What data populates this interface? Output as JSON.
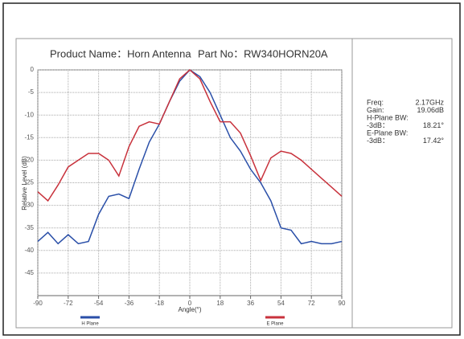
{
  "chart_data": {
    "type": "line",
    "title": "Product Name：Horn Antenna",
    "subtitle": "Part No：RW340HORN20A",
    "x_label": "Angle(°)",
    "y_label": "Relative Level (dB)",
    "x": [
      -90,
      -84,
      -78,
      -72,
      -66,
      -60,
      -54,
      -48,
      -42,
      -36,
      -30,
      -24,
      -18,
      -12,
      -6,
      0,
      6,
      12,
      18,
      24,
      30,
      36,
      42,
      48,
      54,
      60,
      66,
      72,
      78,
      84,
      90
    ],
    "series": [
      {
        "name": "H Plane",
        "color": "#2a4fa8",
        "values": [
          -38,
          -36,
          -38.5,
          -36.5,
          -38.5,
          -38,
          -32,
          -28,
          -27.5,
          -28.5,
          -22,
          -16,
          -12,
          -7,
          -2.5,
          0,
          -1.5,
          -5,
          -10,
          -15,
          -18,
          -22,
          -25,
          -29,
          -35,
          -35.5,
          -38.5,
          -38,
          -38.5,
          -38.5,
          -38
        ]
      },
      {
        "name": "E Plane",
        "color": "#c8323c",
        "values": [
          -27,
          -29,
          -25.5,
          -21.5,
          -20,
          -18.5,
          -18.5,
          -20,
          -23.5,
          -17,
          -12.5,
          -11.5,
          -12,
          -7,
          -2,
          0,
          -2,
          -7,
          -11.5,
          -11.5,
          -14,
          -19,
          -24.5,
          -19.5,
          -18,
          -18.5,
          -20,
          -22,
          -24,
          -26,
          -28
        ]
      }
    ],
    "xlim": [
      -90,
      90
    ],
    "xticks": [
      -90,
      -72,
      -54,
      -36,
      -18,
      0,
      18,
      36,
      54,
      72,
      90
    ],
    "ylim": [
      -50,
      0
    ],
    "yticks": [
      0,
      -5,
      -10,
      -15,
      -20,
      -25,
      -30,
      -35,
      -40,
      -45
    ],
    "grid": true,
    "info": [
      {
        "label": "Freq:",
        "value": "2.17GHz"
      },
      {
        "label": "Gain:",
        "value": "19.06dB"
      },
      {
        "label": "H-Plane BW:"
      },
      {
        "label": "-3dB：",
        "value": "18.21°"
      },
      {
        "label": "E-Plane BW:"
      },
      {
        "label": "-3dB：",
        "value": "17.42°"
      }
    ]
  }
}
